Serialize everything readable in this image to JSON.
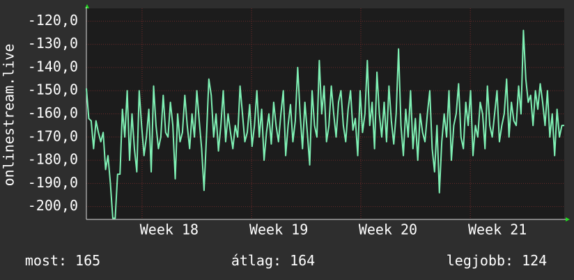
{
  "chart_data": {
    "type": "line",
    "y_label": "onlinestream.live",
    "xlim": [
      0,
      199
    ],
    "xticks": [
      {
        "value": 34.5,
        "label": "Week 18"
      },
      {
        "value": 80.1,
        "label": "Week 19"
      },
      {
        "value": 125.6,
        "label": "Week 20"
      },
      {
        "value": 171.2,
        "label": "Week 21"
      }
    ],
    "ylim": [
      -205.5,
      -114.5
    ],
    "yticks": [
      {
        "value": -200,
        "label": "-200,0"
      },
      {
        "value": -190,
        "label": "-190,0"
      },
      {
        "value": -180,
        "label": "-180,0"
      },
      {
        "value": -170,
        "label": "-170,0"
      },
      {
        "value": -160,
        "label": "-160,0"
      },
      {
        "value": -150,
        "label": "-150,0"
      },
      {
        "value": -140,
        "label": "-140,0"
      },
      {
        "value": -130,
        "label": "-130,0"
      },
      {
        "value": -120,
        "label": "-120,0"
      }
    ],
    "grid": true,
    "series": [
      {
        "color": "#7ff0b4",
        "values": [
          -149,
          -162,
          -163,
          -175,
          -163,
          -168,
          -172,
          -168,
          -184,
          -178,
          -190,
          -205,
          -205,
          -186,
          -186,
          -158,
          -170,
          -150,
          -180,
          -160,
          -175,
          -185,
          -150,
          -165,
          -178,
          -170,
          -158,
          -185,
          -148,
          -165,
          -175,
          -170,
          -152,
          -168,
          -170,
          -155,
          -165,
          -188,
          -160,
          -172,
          -168,
          -152,
          -165,
          -175,
          -160,
          -170,
          -150,
          -163,
          -175,
          -193,
          -170,
          -145,
          -152,
          -170,
          -160,
          -176,
          -165,
          -150,
          -172,
          -160,
          -168,
          -175,
          -165,
          -170,
          -148,
          -160,
          -172,
          -168,
          -156,
          -174,
          -165,
          -150,
          -170,
          -158,
          -180,
          -168,
          -160,
          -173,
          -155,
          -165,
          -172,
          -160,
          -150,
          -178,
          -165,
          -156,
          -172,
          -163,
          -140,
          -160,
          -175,
          -155,
          -168,
          -182,
          -150,
          -165,
          -170,
          -137,
          -160,
          -148,
          -172,
          -165,
          -148,
          -160,
          -170,
          -155,
          -150,
          -165,
          -172,
          -158,
          -150,
          -167,
          -162,
          -178,
          -150,
          -168,
          -160,
          -137,
          -165,
          -155,
          -175,
          -142,
          -160,
          -170,
          -155,
          -172,
          -148,
          -163,
          -173,
          -160,
          -132,
          -165,
          -178,
          -158,
          -170,
          -150,
          -175,
          -162,
          -180,
          -160,
          -168,
          -172,
          -160,
          -150,
          -175,
          -185,
          -165,
          -194,
          -172,
          -160,
          -170,
          -150,
          -180,
          -165,
          -160,
          -147,
          -170,
          -175,
          -155,
          -165,
          -150,
          -178,
          -165,
          -170,
          -155,
          -160,
          -175,
          -148,
          -165,
          -170,
          -160,
          -150,
          -172,
          -165,
          -160,
          -145,
          -170,
          -155,
          -163,
          -165,
          -148,
          -160,
          -124,
          -145,
          -155,
          -152,
          -165,
          -150,
          -158,
          -147,
          -155,
          -165,
          -150,
          -170,
          -160,
          -178,
          -158,
          -170,
          -165,
          -165
        ]
      }
    ],
    "footer": [
      {
        "label": "most:",
        "value": 165
      },
      {
        "label": "átlag:",
        "value": 164
      },
      {
        "label": "legjobb:",
        "value": 124
      }
    ]
  }
}
